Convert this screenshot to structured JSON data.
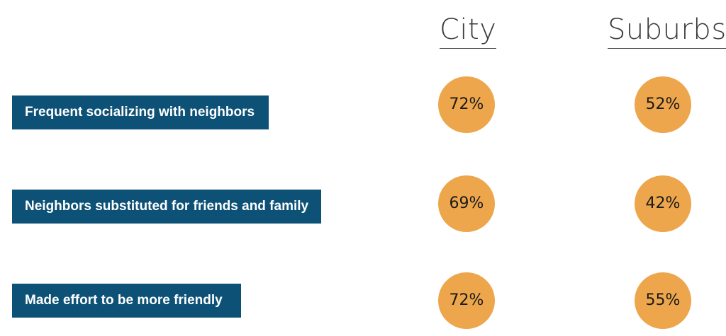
{
  "chart_data": {
    "type": "table",
    "columns": [
      "City",
      "Suburbs"
    ],
    "rows": [
      {
        "label": "Frequent socializing with neighbors",
        "values": [
          "72%",
          "52%"
        ]
      },
      {
        "label": "Neighbors substituted for friends and family",
        "values": [
          "69%",
          "42%"
        ]
      },
      {
        "label": "Made effort to be more friendly",
        "values": [
          "72%",
          "55%"
        ]
      }
    ],
    "colors": {
      "label_bg": "#0d5177",
      "label_text": "#ffffff",
      "bubble": "#eda64c",
      "bubble_text": "#1a1a1a",
      "header_text": "#3c3c3c"
    }
  }
}
